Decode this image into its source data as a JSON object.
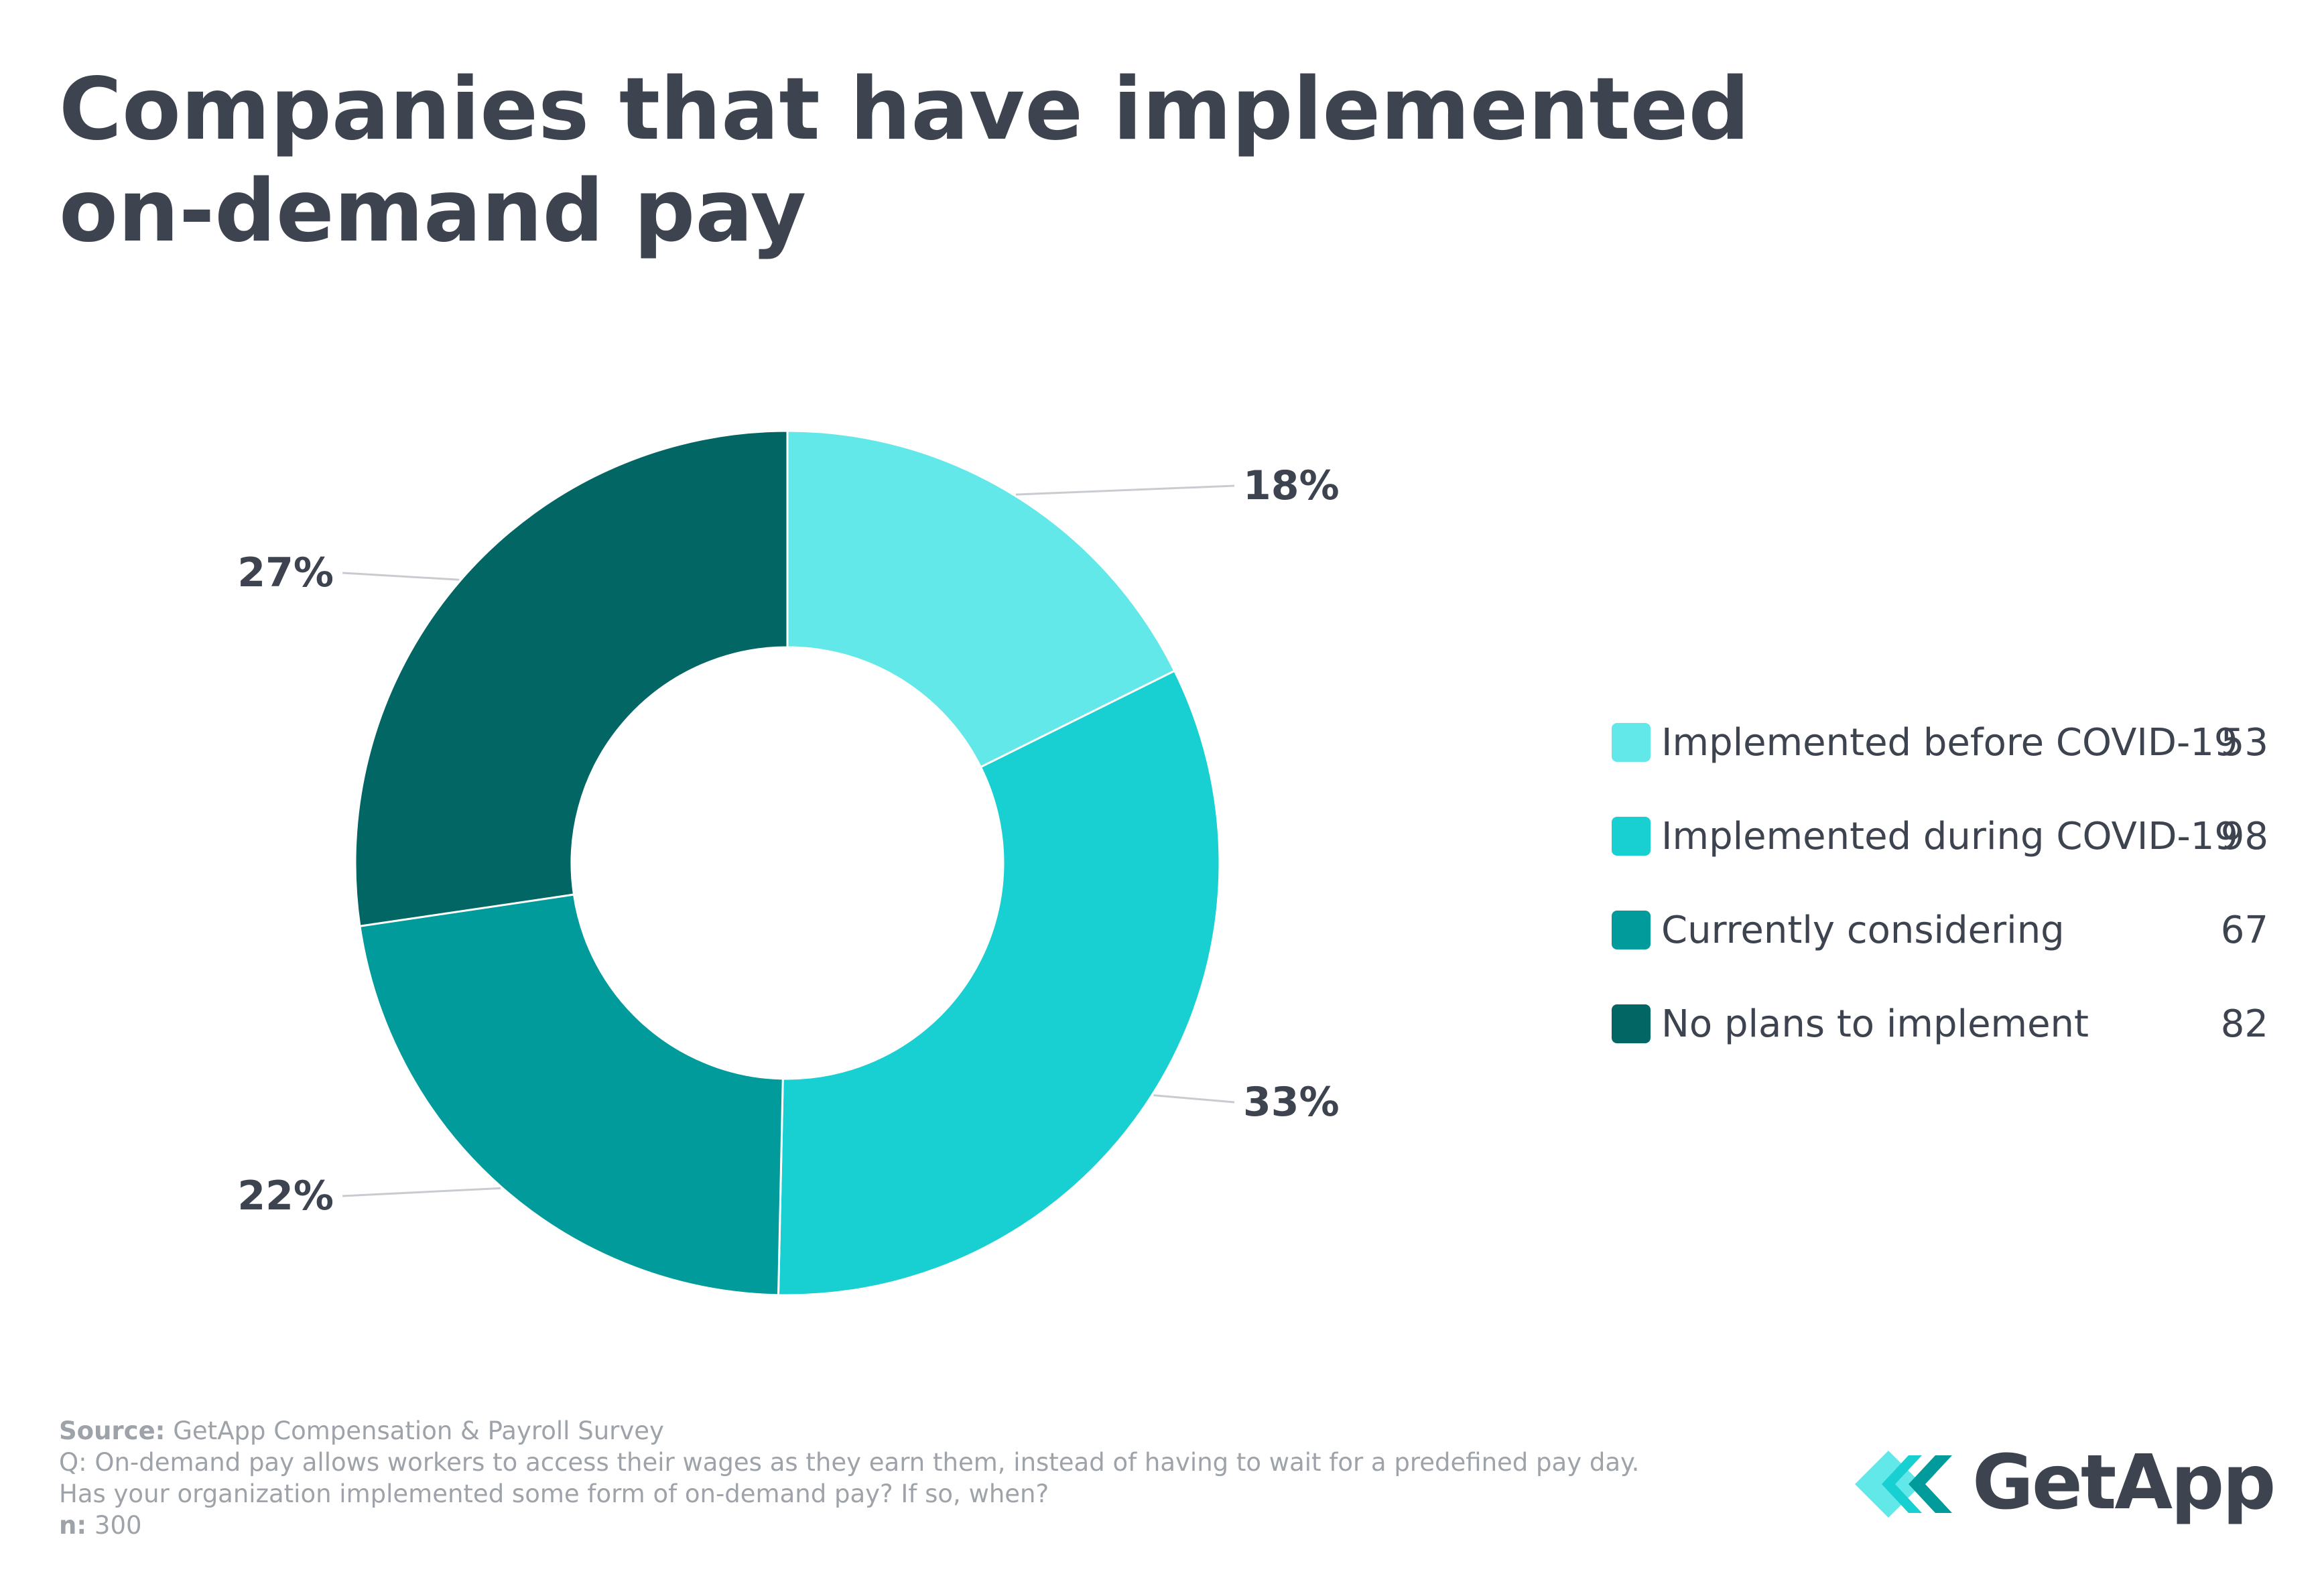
{
  "chart_data": {
    "type": "pie",
    "title": "Companies that have implemented on-demand pay",
    "title_lines": [
      "Companies that have implemented",
      "on-demand pay"
    ],
    "donut": true,
    "legend_position": "right",
    "slices": [
      {
        "label": "Implemented before COVID-19",
        "value": 53,
        "percent_label": "18%",
        "color": "#62e8e8"
      },
      {
        "label": "Implemented during COVID-19",
        "value": 98,
        "percent_label": "33%",
        "color": "#18cfd1"
      },
      {
        "label": "Currently considering",
        "value": 67,
        "percent_label": "22%",
        "color": "#019b9b"
      },
      {
        "label": "No plans to implement",
        "value": 82,
        "percent_label": "27%",
        "color": "#016664"
      }
    ]
  },
  "footer": {
    "source_label": "Source:",
    "source_text": "GetApp Compensation & Payroll Survey",
    "question_line1": "Q: On-demand pay allows workers to access their wages as they earn them, instead of having to wait for a predefined pay day.",
    "question_line2": "Has your organization implemented some form of on-demand pay? If so, when?",
    "n_label": "n:",
    "n_value": "300"
  },
  "logo": {
    "text": "GetApp",
    "colors": [
      "#62e8e8",
      "#18cfd1",
      "#019b9b"
    ]
  }
}
